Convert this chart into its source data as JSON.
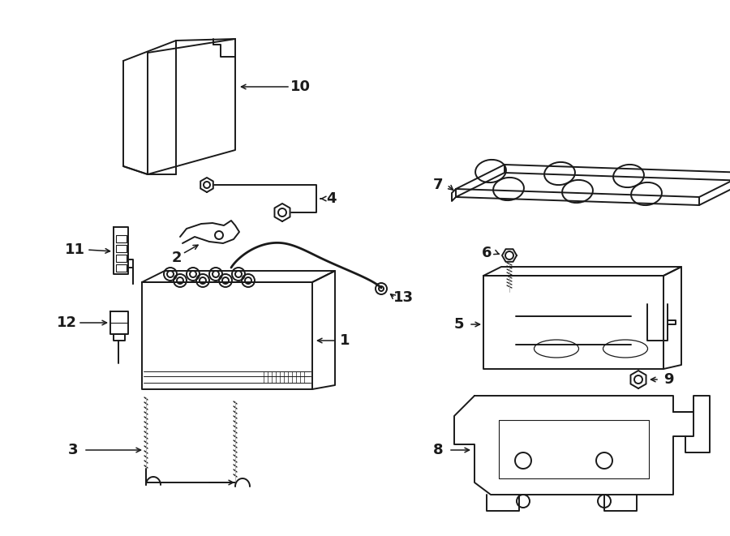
{
  "bg_color": "#ffffff",
  "lc": "#1a1a1a",
  "lw": 1.4,
  "fs": 13
}
